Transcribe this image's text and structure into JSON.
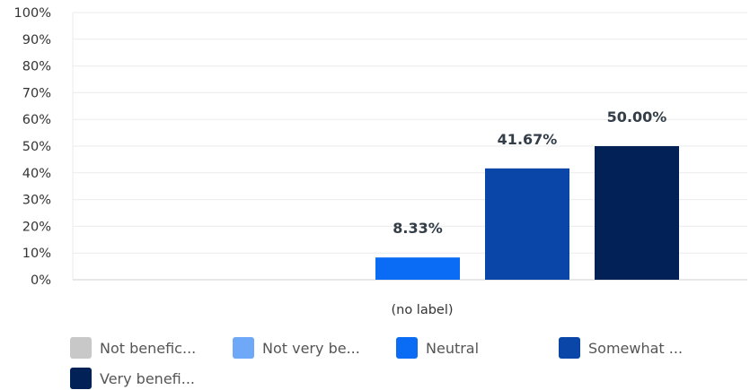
{
  "chart_data": {
    "type": "bar",
    "categories": [
      "(no label)"
    ],
    "series": [
      {
        "name": "Not benefic...",
        "values": [
          0
        ],
        "color": "#c8c8c8"
      },
      {
        "name": "Not very be...",
        "values": [
          0
        ],
        "color": "#6fa8f7"
      },
      {
        "name": "Neutral",
        "values": [
          8.33
        ],
        "color": "#0a6cf5"
      },
      {
        "name": "Somewhat ...",
        "values": [
          41.67
        ],
        "color": "#0a45a8"
      },
      {
        "name": "Very benefi...",
        "values": [
          50.0
        ],
        "color": "#012157"
      }
    ],
    "data_labels": [
      "",
      "",
      "8.33%",
      "41.67%",
      "50.00%"
    ],
    "yticks": [
      "0%",
      "10%",
      "20%",
      "30%",
      "40%",
      "50%",
      "60%",
      "70%",
      "80%",
      "90%",
      "100%"
    ],
    "ylim": [
      0,
      100
    ],
    "grid": true,
    "legend_position": "bottom"
  }
}
